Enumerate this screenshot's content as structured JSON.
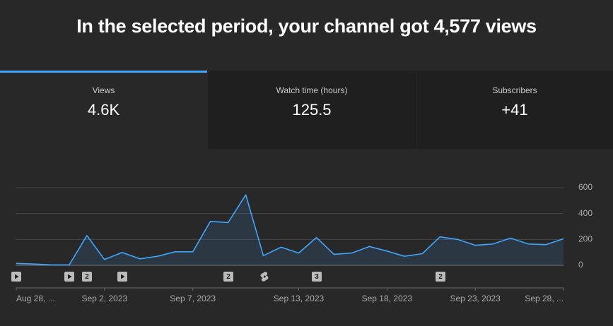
{
  "header": {
    "title": "In the selected period, your channel got 4,577 views"
  },
  "tabs": [
    {
      "label": "Views",
      "value": "4.6K"
    },
    {
      "label": "Watch time (hours)",
      "value": "125.5"
    },
    {
      "label": "Subscribers",
      "value": "+41"
    }
  ],
  "chart_data": {
    "type": "area",
    "categories": [
      "Aug 28, ...",
      null,
      null,
      null,
      null,
      "Sep 2, 2023",
      null,
      null,
      null,
      null,
      "Sep 7, 2023",
      null,
      null,
      null,
      null,
      null,
      "Sep 13, 2023",
      null,
      null,
      null,
      null,
      "Sep 18, 2023",
      null,
      null,
      null,
      null,
      "Sep 23, 2023",
      null,
      null,
      null,
      null,
      "Sep 28, ..."
    ],
    "values": [
      15,
      10,
      3,
      3,
      230,
      45,
      100,
      50,
      70,
      105,
      105,
      340,
      330,
      545,
      75,
      140,
      95,
      215,
      85,
      95,
      145,
      110,
      70,
      90,
      220,
      200,
      155,
      165,
      210,
      165,
      160,
      205
    ],
    "color": "#3ea6ff",
    "ylim": [
      0,
      600
    ],
    "yticks": [
      0,
      200,
      400,
      600
    ],
    "grid": true,
    "markers": [
      "2",
      "2",
      "3",
      "2"
    ]
  }
}
